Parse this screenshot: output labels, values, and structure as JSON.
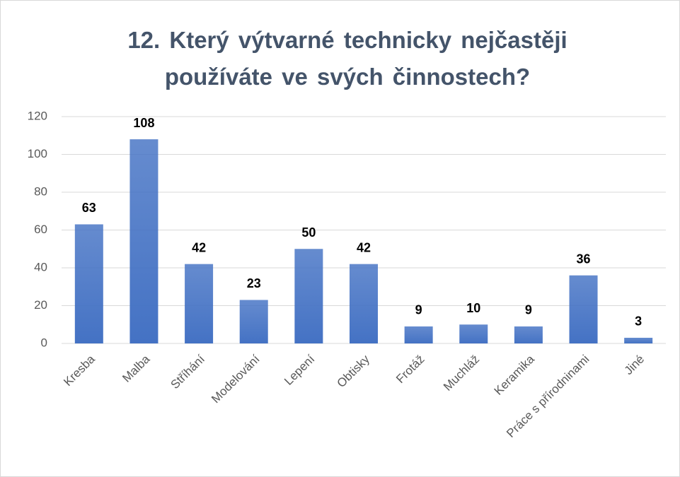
{
  "chart_data": {
    "type": "bar",
    "title": "12. Který výtvarné technicky nejčastěji používáte ve svých činnostech?",
    "categories": [
      "Kresba",
      "Malba",
      "Stříhání",
      "Modelování",
      "Lepení",
      "Obtisky",
      "Frotáž",
      "Muchláž",
      "Keramika",
      "Práce s přírodninami",
      "Jiné"
    ],
    "values": [
      63,
      108,
      42,
      23,
      50,
      42,
      9,
      10,
      9,
      36,
      3
    ],
    "color": "#4472c4",
    "ylim": [
      0,
      120
    ],
    "yticks": [
      0,
      20,
      40,
      60,
      80,
      100,
      120
    ],
    "grid": true
  }
}
